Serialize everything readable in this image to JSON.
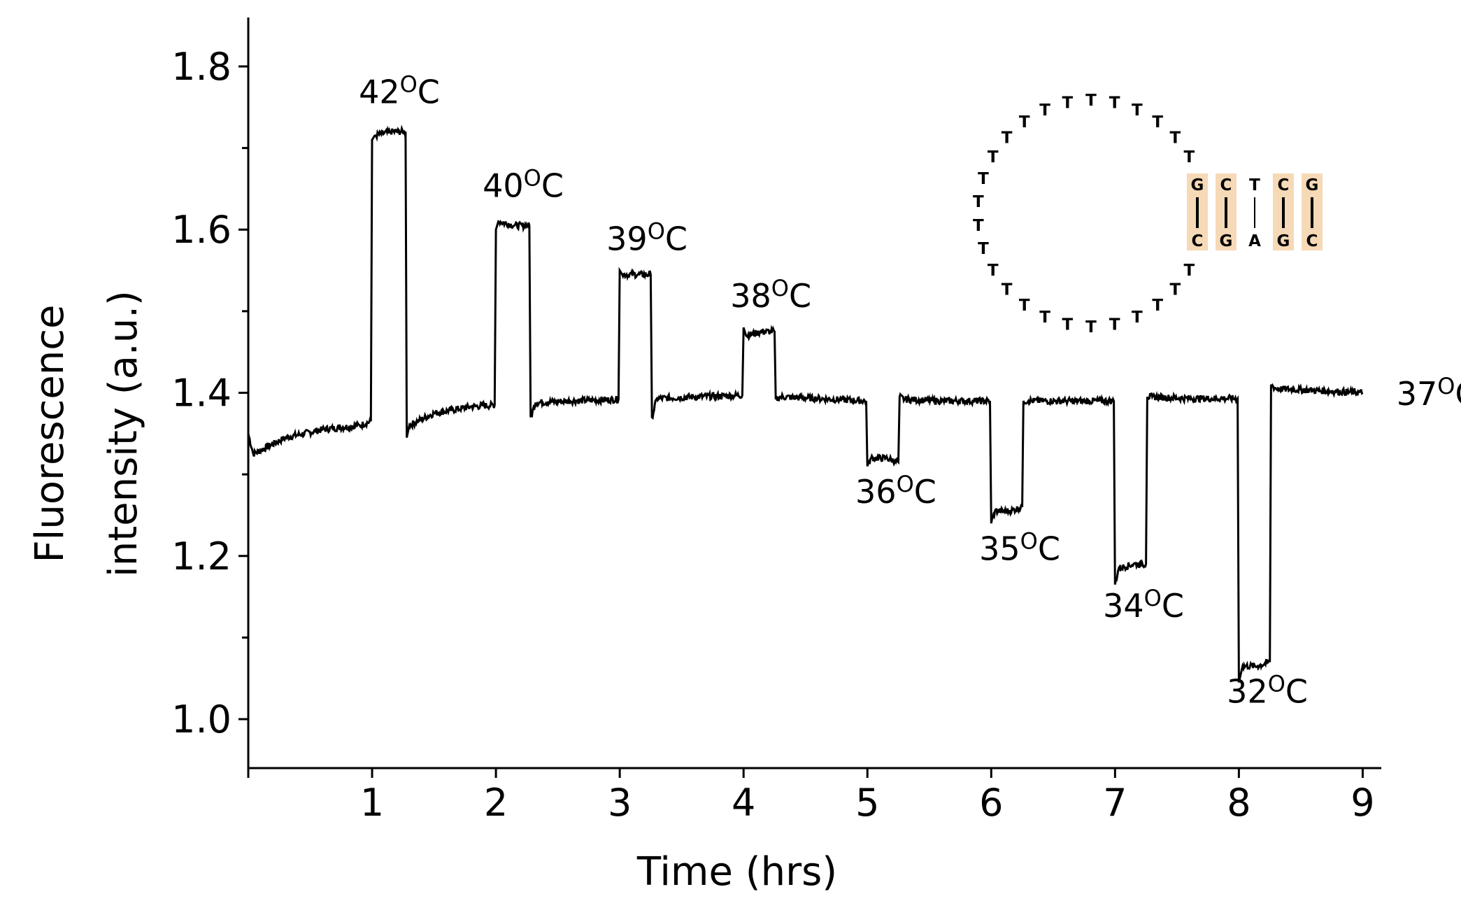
{
  "chart_data": {
    "type": "line",
    "title": "",
    "xlabel": "Time (hrs)",
    "ylabel_line1": "Fluorescence",
    "ylabel_line2": "intensity (a.u.)",
    "xlim": [
      0,
      9.15
    ],
    "ylim": [
      0.94,
      1.86
    ],
    "xticks": [
      1,
      2,
      3,
      4,
      5,
      6,
      7,
      8,
      9
    ],
    "yticks": [
      1.0,
      1.2,
      1.4,
      1.6,
      1.8
    ],
    "ytick_labels": [
      "1.0",
      "1.2",
      "1.4",
      "1.6",
      "1.8"
    ],
    "minor_yticks": [
      1.1,
      1.3,
      1.5,
      1.7
    ],
    "grid": false,
    "series": [
      {
        "x": [
          0,
          0.04,
          0.3,
          0.6,
          0.9,
          0.99,
          1.0,
          1.02,
          1.15,
          1.27,
          1.28,
          1.3,
          1.5,
          1.8,
          1.99,
          2.0,
          2.02,
          2.15,
          2.27,
          2.28,
          2.32,
          2.6,
          2.99,
          3.0,
          3.02,
          3.15,
          3.25,
          3.26,
          3.3,
          3.6,
          3.99,
          4.0,
          4.02,
          4.15,
          4.25,
          4.26,
          4.3,
          4.6,
          4.99,
          5.0,
          5.03,
          5.15,
          5.25,
          5.26,
          5.3,
          5.6,
          5.99,
          6.0,
          6.03,
          6.15,
          6.25,
          6.26,
          6.3,
          6.6,
          6.99,
          7.0,
          7.03,
          7.15,
          7.25,
          7.26,
          7.3,
          7.6,
          7.99,
          8.0,
          8.03,
          8.15,
          8.25,
          8.26,
          8.3,
          8.6,
          9.0
        ],
        "y": [
          1.35,
          1.325,
          1.345,
          1.355,
          1.36,
          1.365,
          1.71,
          1.715,
          1.72,
          1.72,
          1.345,
          1.36,
          1.375,
          1.383,
          1.385,
          1.6,
          1.61,
          1.605,
          1.605,
          1.37,
          1.388,
          1.39,
          1.392,
          1.55,
          1.545,
          1.545,
          1.545,
          1.37,
          1.393,
          1.395,
          1.397,
          1.48,
          1.47,
          1.475,
          1.475,
          1.392,
          1.395,
          1.393,
          1.39,
          1.31,
          1.32,
          1.32,
          1.315,
          1.395,
          1.392,
          1.39,
          1.39,
          1.24,
          1.255,
          1.255,
          1.26,
          1.39,
          1.39,
          1.39,
          1.39,
          1.165,
          1.185,
          1.19,
          1.19,
          1.395,
          1.395,
          1.393,
          1.393,
          1.045,
          1.065,
          1.065,
          1.07,
          1.41,
          1.405,
          1.403,
          1.4
        ]
      }
    ],
    "annotations": [
      {
        "label": "42",
        "x": 1.22,
        "y": 1.755
      },
      {
        "label": "40",
        "x": 2.22,
        "y": 1.64
      },
      {
        "label": "39",
        "x": 3.22,
        "y": 1.575
      },
      {
        "label": "38",
        "x": 4.22,
        "y": 1.505
      },
      {
        "label": "36",
        "x": 5.23,
        "y": 1.265
      },
      {
        "label": "35",
        "x": 6.23,
        "y": 1.195
      },
      {
        "label": "34",
        "x": 7.23,
        "y": 1.125
      },
      {
        "label": "32",
        "x": 8.23,
        "y": 1.02
      },
      {
        "label": "37",
        "x": 9.6,
        "y": 1.385
      }
    ],
    "unit_superscript": "O",
    "unit_letter": "C"
  },
  "hairpin": {
    "loop_bases": [
      "T",
      "T",
      "T",
      "T",
      "T",
      "T",
      "T",
      "T",
      "T",
      "T",
      "T",
      "T",
      "T",
      "T",
      "T",
      "T",
      "T",
      "T",
      "T",
      "T",
      "T",
      "T",
      "T",
      "T",
      "T",
      "T"
    ],
    "stem_top": [
      "G",
      "C",
      "T",
      "C",
      "G"
    ],
    "stem_bottom": [
      "C",
      "G",
      "A",
      "G",
      "C"
    ],
    "stem_highlight": [
      true,
      true,
      false,
      true,
      true
    ]
  }
}
